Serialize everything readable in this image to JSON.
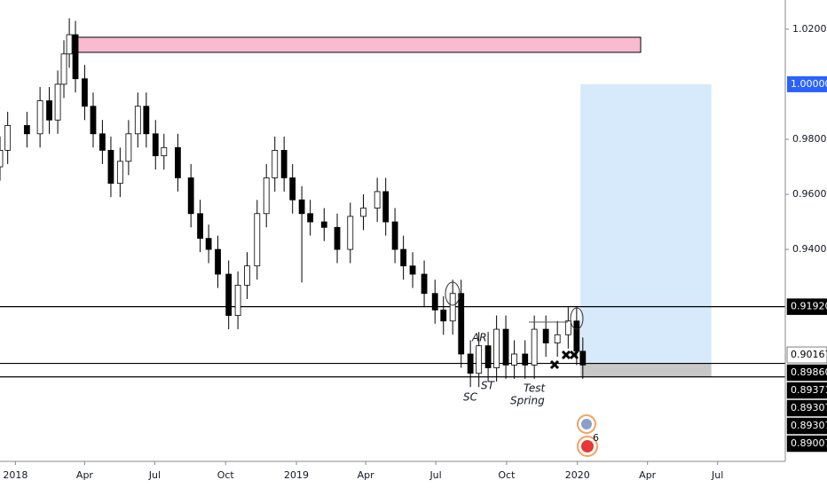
{
  "chart_data": {
    "type": "candlestick",
    "x": [
      -20,
      -10,
      15,
      32,
      44,
      55,
      63,
      70,
      78,
      90,
      101,
      113,
      124,
      136,
      147,
      159,
      170,
      182,
      193,
      211,
      228,
      240,
      251,
      263,
      277,
      289,
      301,
      314,
      326,
      337,
      349,
      360,
      372,
      383,
      401,
      418,
      435,
      452,
      470,
      481,
      493,
      504,
      516,
      531,
      545,
      556,
      568,
      579,
      591,
      602,
      614,
      625,
      637,
      648,
      662,
      674,
      689,
      704,
      718,
      729,
      737
    ],
    "open": [
      0.97,
      0.976,
      0.985,
      0.982,
      0.994,
      0.987,
      1.0,
      1.011,
      1.018,
      1.002,
      0.992,
      0.982,
      0.976,
      0.964,
      0.972,
      0.982,
      0.992,
      0.982,
      0.974,
      0.977,
      0.966,
      0.953,
      0.944,
      0.94,
      0.931,
      0.916,
      0.927,
      0.934,
      0.953,
      0.966,
      0.976,
      0.966,
      0.958,
      0.953,
      0.95,
      0.948,
      0.94,
      0.952,
      0.955,
      0.961,
      0.95,
      0.94,
      0.934,
      0.931,
      0.924,
      0.918,
      0.914,
      0.924,
      0.902,
      0.895,
      0.905,
      0.897,
      0.911,
      0.898,
      0.902,
      0.898,
      0.911,
      0.906,
      0.909,
      0.914,
      0.903
    ],
    "high": [
      0.981,
      0.99,
      0.99,
      0.999,
      0.999,
      1.005,
      1.016,
      1.024,
      1.023,
      1.007,
      0.997,
      0.987,
      0.981,
      0.977,
      0.987,
      0.997,
      0.997,
      0.987,
      0.982,
      0.982,
      0.971,
      0.958,
      0.949,
      0.945,
      0.936,
      0.932,
      0.939,
      0.958,
      0.971,
      0.981,
      0.981,
      0.971,
      0.963,
      0.958,
      0.955,
      0.953,
      0.957,
      0.96,
      0.966,
      0.966,
      0.955,
      0.945,
      0.939,
      0.936,
      0.929,
      0.923,
      0.929,
      0.929,
      0.907,
      0.91,
      0.91,
      0.916,
      0.916,
      0.907,
      0.907,
      0.916,
      0.916,
      0.914,
      0.919,
      0.919,
      0.908
    ],
    "low": [
      0.965,
      0.971,
      0.977,
      0.977,
      0.982,
      0.982,
      0.995,
      1.006,
      0.997,
      0.987,
      0.977,
      0.971,
      0.959,
      0.959,
      0.967,
      0.977,
      0.977,
      0.969,
      0.969,
      0.961,
      0.948,
      0.939,
      0.935,
      0.926,
      0.911,
      0.911,
      0.922,
      0.929,
      0.948,
      0.961,
      0.961,
      0.953,
      0.928,
      0.945,
      0.943,
      0.935,
      0.935,
      0.947,
      0.95,
      0.945,
      0.935,
      0.929,
      0.926,
      0.919,
      0.913,
      0.909,
      0.909,
      0.897,
      0.89,
      0.89,
      0.892,
      0.892,
      0.893,
      0.893,
      0.893,
      0.893,
      0.901,
      0.901,
      0.904,
      0.898,
      0.893
    ],
    "close": [
      0.976,
      0.985,
      0.982,
      0.994,
      0.987,
      1.0,
      1.011,
      1.018,
      1.002,
      0.992,
      0.982,
      0.976,
      0.964,
      0.972,
      0.982,
      0.992,
      0.982,
      0.974,
      0.977,
      0.966,
      0.953,
      0.944,
      0.94,
      0.931,
      0.916,
      0.927,
      0.934,
      0.953,
      0.966,
      0.976,
      0.966,
      0.958,
      0.953,
      0.95,
      0.948,
      0.94,
      0.952,
      0.955,
      0.961,
      0.95,
      0.94,
      0.934,
      0.931,
      0.924,
      0.918,
      0.914,
      0.924,
      0.902,
      0.895,
      0.905,
      0.897,
      0.911,
      0.898,
      0.902,
      0.898,
      0.911,
      0.906,
      0.909,
      0.914,
      0.903,
      0.898
    ],
    "up_color": "#ffffff",
    "down_color": "#000000",
    "xlim": [
      -20,
      1000
    ],
    "xticks": [
      {
        "value": 0,
        "label": "2018"
      },
      {
        "value": 90,
        "label": "Apr"
      },
      {
        "value": 181,
        "label": "Jul"
      },
      {
        "value": 273,
        "label": "Oct"
      },
      {
        "value": 365,
        "label": "2019"
      },
      {
        "value": 455,
        "label": "Apr"
      },
      {
        "value": 546,
        "label": "Jul"
      },
      {
        "value": 638,
        "label": "Oct"
      },
      {
        "value": 730,
        "label": "2020"
      },
      {
        "value": 821,
        "label": "Apr"
      },
      {
        "value": 912,
        "label": "Jul"
      }
    ],
    "ylim": [
      0.863,
      1.0306
    ],
    "yticks": [
      {
        "value": 0.94,
        "label": "0.94000"
      },
      {
        "value": 0.96,
        "label": "0.96000"
      },
      {
        "value": 0.98,
        "label": "0.98000"
      },
      {
        "value": 1.02,
        "label": "1.02000"
      }
    ],
    "target": {
      "value": 1.0,
      "label": "1.00000",
      "color": "#2962ff"
    },
    "price_labels": [
      {
        "value": 0.9192,
        "label": "0.91920",
        "color": "#000000"
      },
      {
        "value": 0.90167,
        "label": "0.90167",
        "color": "#ffffff"
      },
      {
        "value": 0.8986,
        "label": "0.89860",
        "color": "#000000"
      },
      {
        "value": 0.89371,
        "label": "0.89371",
        "color": "#000000"
      },
      {
        "value": 0.89307,
        "label": "0.89307",
        "color": "#000000"
      },
      {
        "value": 0.89307,
        "label": "0.89307",
        "color": "#000000"
      },
      {
        "value": 0.89007,
        "label": "0.89007",
        "color": "#000000"
      }
    ],
    "annotations": [
      "AR",
      "SC",
      "ST",
      "Spring",
      "Test"
    ],
    "event_count": "6"
  }
}
